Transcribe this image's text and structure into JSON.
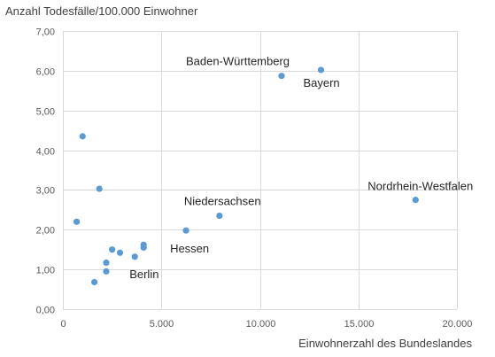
{
  "chart_data": {
    "type": "scatter",
    "ylabel": "Anzahl Todesfälle/100.000 Einwohner",
    "xlabel": "Einwohnerzahl des Bundeslandes",
    "xlim": [
      0,
      20000
    ],
    "ylim": [
      0,
      7
    ],
    "x_ticks": [
      "0",
      "5.000",
      "10.000",
      "15.000",
      "20.000"
    ],
    "y_ticks": [
      "0,00",
      "1,00",
      "2,00",
      "3,00",
      "4,00",
      "5,00",
      "6,00",
      "7,00"
    ],
    "grid": true,
    "marker_color": "#5b9bd5",
    "points": [
      {
        "x": 1000,
        "y": 4.35,
        "label": ""
      },
      {
        "x": 1850,
        "y": 3.03,
        "label": ""
      },
      {
        "x": 700,
        "y": 2.2,
        "label": ""
      },
      {
        "x": 1600,
        "y": 0.68,
        "label": ""
      },
      {
        "x": 2200,
        "y": 1.17,
        "label": ""
      },
      {
        "x": 2200,
        "y": 0.95,
        "label": ""
      },
      {
        "x": 2500,
        "y": 1.5,
        "label": ""
      },
      {
        "x": 2900,
        "y": 1.42,
        "label": ""
      },
      {
        "x": 3650,
        "y": 1.32,
        "label": "Berlin"
      },
      {
        "x": 4100,
        "y": 1.62,
        "label": ""
      },
      {
        "x": 4100,
        "y": 1.55,
        "label": ""
      },
      {
        "x": 6250,
        "y": 1.98,
        "label": "Hessen"
      },
      {
        "x": 7950,
        "y": 2.35,
        "label": "Niedersachsen"
      },
      {
        "x": 11100,
        "y": 5.87,
        "label": "Baden-Württemberg"
      },
      {
        "x": 13100,
        "y": 6.02,
        "label": "Bayern"
      },
      {
        "x": 17900,
        "y": 2.75,
        "label": "Nordrhein-Westfalen"
      }
    ]
  }
}
